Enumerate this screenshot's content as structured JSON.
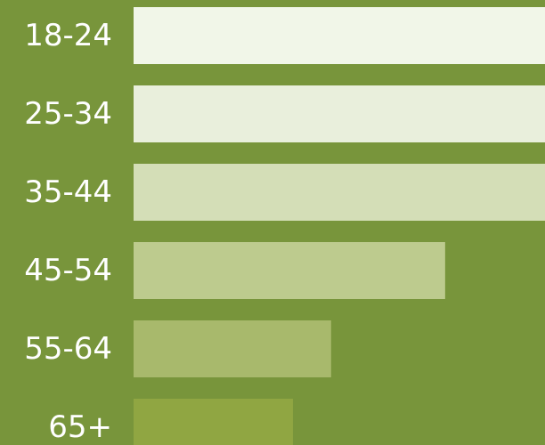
{
  "chart_data": {
    "type": "bar",
    "orientation": "horizontal",
    "title": "",
    "xlabel": "",
    "ylabel": "",
    "categories": [
      "18-24",
      "25-34",
      "35-44",
      "45-54",
      "55-64",
      "65+"
    ],
    "values": [
      100,
      100,
      100,
      73.5,
      46.6,
      37.6
    ],
    "xlim": [
      0,
      100
    ],
    "grid": false,
    "legend": "none",
    "colors": {
      "background": "#78953b",
      "bars": [
        "#f1f6e8",
        "#e9efdc",
        "#d4deb7",
        "#bdcb8e",
        "#a8b96c",
        "#90a642"
      ],
      "labels": "#ffffff"
    }
  }
}
